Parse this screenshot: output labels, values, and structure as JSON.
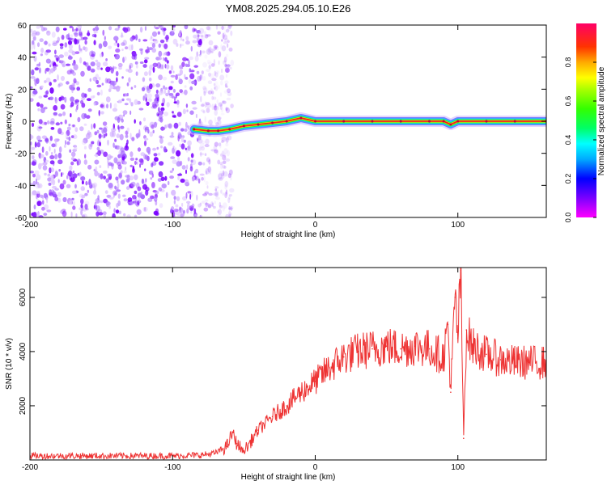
{
  "title": "YM08.2025.294.05.10.E26",
  "chart_data": [
    {
      "type": "heatmap",
      "xlabel": "Height of straight line (km)",
      "ylabel": "Frequency (Hz)",
      "xlim": [
        -200,
        162
      ],
      "ylim": [
        -60,
        60
      ],
      "x_ticks": [
        -200,
        -100,
        0,
        100
      ],
      "y_ticks": [
        -60,
        -40,
        -20,
        0,
        20,
        40,
        60
      ],
      "colorbar": {
        "label": "Normalized spectral amplitude",
        "range": [
          0,
          1
        ],
        "ticks": [
          0.0,
          0.2,
          0.4,
          0.6,
          0.8
        ]
      },
      "noise_region_x": [
        -200,
        -72
      ],
      "signal_trace": [
        {
          "x": -85,
          "freq": -5,
          "amplitude": 0.35
        },
        {
          "x": -75,
          "freq": -6,
          "amplitude": 0.4
        },
        {
          "x": -68,
          "freq": -6,
          "amplitude": 0.45
        },
        {
          "x": -60,
          "freq": -5,
          "amplitude": 0.45
        },
        {
          "x": -50,
          "freq": -3,
          "amplitude": 0.55
        },
        {
          "x": -40,
          "freq": -2,
          "amplitude": 0.7
        },
        {
          "x": -30,
          "freq": -1,
          "amplitude": 0.75
        },
        {
          "x": -20,
          "freq": 0,
          "amplitude": 0.8
        },
        {
          "x": -10,
          "freq": 2,
          "amplitude": 0.85
        },
        {
          "x": 0,
          "freq": 0,
          "amplitude": 0.9
        },
        {
          "x": 20,
          "freq": 0,
          "amplitude": 0.92
        },
        {
          "x": 40,
          "freq": 0,
          "amplitude": 0.93
        },
        {
          "x": 60,
          "freq": 0,
          "amplitude": 0.93
        },
        {
          "x": 80,
          "freq": 0,
          "amplitude": 0.9
        },
        {
          "x": 90,
          "freq": 0,
          "amplitude": 0.85
        },
        {
          "x": 95,
          "freq": -2,
          "amplitude": 0.6
        },
        {
          "x": 100,
          "freq": 0,
          "amplitude": 0.9
        },
        {
          "x": 120,
          "freq": 0,
          "amplitude": 0.93
        },
        {
          "x": 140,
          "freq": 0,
          "amplitude": 0.93
        },
        {
          "x": 162,
          "freq": 0,
          "amplitude": 0.92
        }
      ]
    },
    {
      "type": "line",
      "xlabel": "Height of straight line (km)",
      "ylabel": "SNR (10 * v/v)",
      "xlim": [
        -200,
        162
      ],
      "ylim": [
        0,
        7100
      ],
      "x_ticks": [
        -200,
        -100,
        0,
        100
      ],
      "y_ticks": [
        2000,
        4000,
        6000
      ],
      "series": [
        {
          "color": "#ee3333",
          "x": [
            -200,
            -150,
            -100,
            -80,
            -70,
            -62,
            -58,
            -55,
            -50,
            -45,
            -40,
            -30,
            -20,
            -10,
            0,
            10,
            20,
            30,
            40,
            50,
            60,
            70,
            80,
            90,
            93,
            95,
            98,
            100,
            102,
            104,
            106,
            110,
            120,
            130,
            140,
            150,
            162
          ],
          "y": [
            150,
            150,
            150,
            180,
            250,
            500,
            1000,
            600,
            300,
            700,
            1100,
            1600,
            2000,
            2500,
            2900,
            3400,
            3800,
            4000,
            4100,
            4200,
            4100,
            4200,
            4100,
            3800,
            5000,
            2500,
            6000,
            4500,
            7000,
            800,
            4800,
            4200,
            3900,
            3700,
            3600,
            3600,
            3600
          ]
        }
      ]
    }
  ]
}
